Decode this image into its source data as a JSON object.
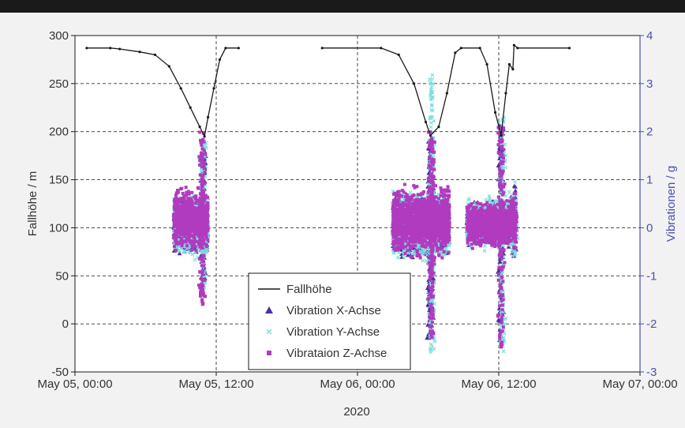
{
  "chart_data": {
    "type": "line",
    "title": "",
    "xlabel": "2020",
    "ylabel": "Fallhöhe / m",
    "y2label": "Vibrationen / g",
    "x_ticks": [
      "May 05, 00:00",
      "May 05, 12:00",
      "May 06, 00:00",
      "May 06, 12:00",
      "May 07, 00:00"
    ],
    "x_range_hours": [
      0,
      48
    ],
    "ylim": [
      -50,
      300
    ],
    "y_ticks": [
      -50,
      0,
      50,
      100,
      150,
      200,
      250,
      300
    ],
    "y2lim": [
      -3,
      4
    ],
    "y2_ticks": [
      -3,
      -2,
      -1,
      0,
      1,
      2,
      3,
      4
    ],
    "grid": true,
    "legend_position": "bottom-center",
    "colors": {
      "fallhoehe": "#1a1a1a",
      "vib_x": "#4b2ea8",
      "vib_y": "#7fdedc",
      "vib_z": "#b13bbf",
      "y2_axis": "#4b4fb8"
    },
    "series": [
      {
        "name": "Fallhöhe",
        "axis": "left",
        "segments": [
          [
            [
              1.0,
              287
            ],
            [
              3.0,
              287
            ],
            [
              3.8,
              286
            ],
            [
              5.5,
              283
            ],
            [
              6.8,
              280
            ],
            [
              8.0,
              268
            ],
            [
              9.0,
              245
            ],
            [
              9.8,
              225
            ],
            [
              10.6,
              205
            ],
            [
              11.0,
              195
            ],
            [
              11.3,
              215
            ],
            [
              11.8,
              245
            ],
            [
              12.3,
              275
            ],
            [
              12.8,
              287
            ],
            [
              13.9,
              287
            ]
          ],
          [
            [
              21.0,
              287
            ],
            [
              26.0,
              287
            ],
            [
              27.5,
              280
            ],
            [
              28.8,
              250
            ],
            [
              29.8,
              210
            ],
            [
              30.2,
              196
            ],
            [
              30.9,
              205
            ],
            [
              31.6,
              240
            ],
            [
              32.3,
              282
            ],
            [
              32.8,
              287
            ],
            [
              34.4,
              287
            ],
            [
              35.0,
              270
            ],
            [
              35.7,
              220
            ],
            [
              36.2,
              196
            ],
            [
              36.6,
              240
            ],
            [
              36.9,
              270
            ],
            [
              37.2,
              265
            ],
            [
              37.3,
              290
            ],
            [
              37.6,
              287
            ],
            [
              42.0,
              287
            ]
          ]
        ]
      },
      {
        "name": "Vibration X-Achse",
        "axis": "right",
        "marker": "triangle",
        "bands": [
          {
            "x_range": [
              8.4,
              11.3
            ],
            "y_range": [
              -0.6,
              0.7
            ],
            "peak_x": 10.9,
            "peak_range": [
              -1.1,
              1.6
            ]
          },
          {
            "x_range": [
              27.0,
              31.8
            ],
            "y_range": [
              -0.7,
              0.8
            ],
            "peak_x": 30.2,
            "peak_range": [
              -2.3,
              1.8
            ]
          },
          {
            "x_range": [
              33.3,
              36.8
            ],
            "y_range": [
              -0.4,
              0.6
            ],
            "peak_x": 36.2,
            "peak_range": [
              -2.5,
              2.2
            ]
          },
          {
            "x_range": [
              36.8,
              37.5
            ],
            "y_range": [
              -0.5,
              0.8
            ],
            "peak_x": 37.3,
            "peak_range": [
              -0.6,
              0.9
            ]
          }
        ]
      },
      {
        "name": "Vibration Y-Achse",
        "axis": "right",
        "marker": "x",
        "bands": [
          {
            "x_range": [
              8.4,
              11.3
            ],
            "y_range": [
              -0.7,
              0.8
            ],
            "peak_x": 10.9,
            "peak_range": [
              -1.3,
              1.8
            ]
          },
          {
            "x_range": [
              27.0,
              31.8
            ],
            "y_range": [
              -0.8,
              0.9
            ],
            "peak_x": 30.3,
            "peak_range": [
              -2.6,
              3.2
            ]
          },
          {
            "x_range": [
              33.3,
              36.8
            ],
            "y_range": [
              -0.5,
              0.7
            ],
            "peak_x": 36.3,
            "peak_range": [
              -2.6,
              2.3
            ]
          },
          {
            "x_range": [
              36.8,
              37.5
            ],
            "y_range": [
              -0.5,
              0.8
            ],
            "peak_x": 37.3,
            "peak_range": [
              -0.6,
              1.0
            ]
          }
        ]
      },
      {
        "name": "Vibrataion Z-Achse",
        "axis": "right",
        "marker": "square",
        "bands": [
          {
            "x_range": [
              8.4,
              11.3
            ],
            "y_range": [
              -0.6,
              0.9
            ],
            "peak_x": 10.8,
            "peak_range": [
              -1.6,
              2.0
            ]
          },
          {
            "x_range": [
              27.0,
              31.8
            ],
            "y_range": [
              -0.7,
              1.0
            ],
            "peak_x": 30.3,
            "peak_range": [
              -2.3,
              2.0
            ]
          },
          {
            "x_range": [
              33.3,
              36.8
            ],
            "y_range": [
              -0.5,
              0.6
            ],
            "peak_x": 36.2,
            "peak_range": [
              -2.5,
              2.1
            ]
          },
          {
            "x_range": [
              36.8,
              37.5
            ],
            "y_range": [
              -0.4,
              0.7
            ],
            "peak_x": 37.3,
            "peak_range": [
              -0.5,
              0.8
            ]
          }
        ]
      }
    ],
    "legend": [
      "Fallhöhe",
      "Vibration X-Achse",
      "Vibration Y-Achse",
      "Vibrataion Z-Achse"
    ]
  }
}
